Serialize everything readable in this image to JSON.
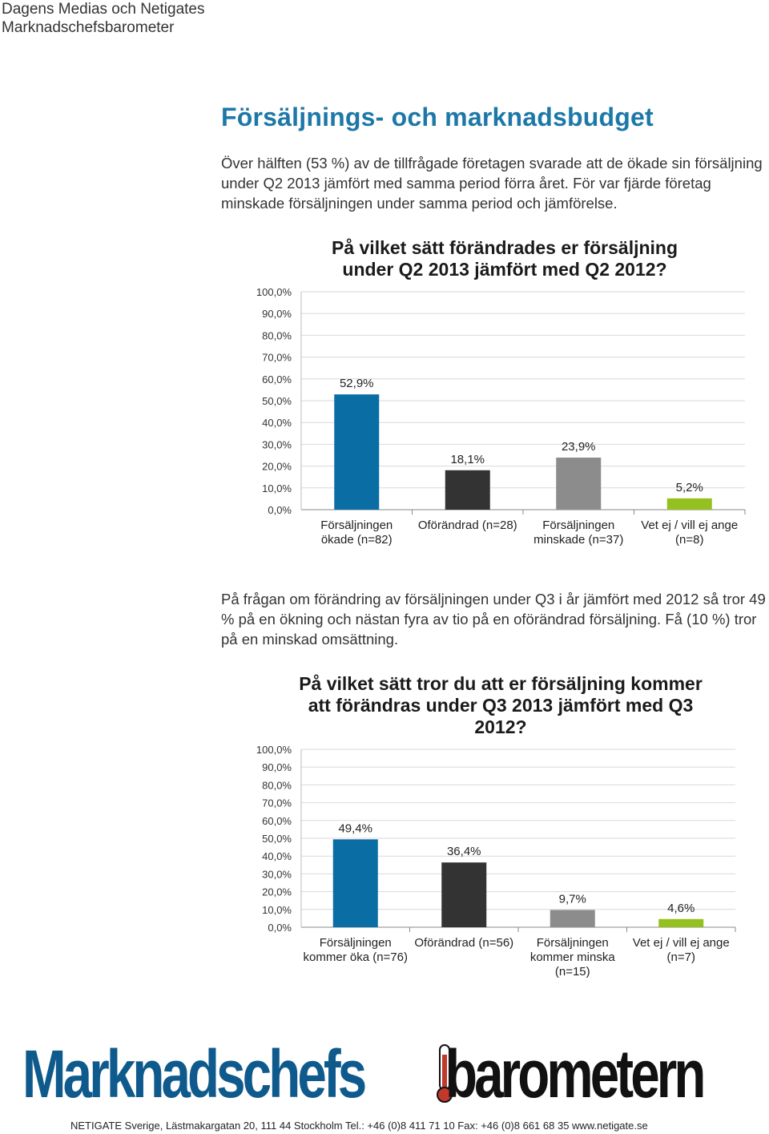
{
  "header": {
    "line1": "Dagens Medias och Netigates",
    "line2": "Marknadschefsbarometer"
  },
  "page_title": "Försäljnings- och marknadsbudget",
  "intro": "Över hälften (53 %) av de tillfrågade företagen svarade att de ökade sin försäljning under Q2 2013 jämfört med samma period förra året. För var fjärde företag minskade försäljningen under samma period och jämförelse.",
  "mid_text": "På frågan om förändring av försäljningen under Q3 i år jämfört med 2012 så tror 49 % på en ökning och nästan fyra av tio på en oförändrad försäljning. Få (10 %) tror på en minskad omsättning.",
  "chart_data": [
    {
      "type": "bar",
      "title": "På vilket sätt förändrades er försäljning under Q2 2013 jämfört med Q2 2012?",
      "categories": [
        [
          "Försäljningen",
          "ökade (n=82)"
        ],
        [
          "Oförändrad (n=28)"
        ],
        [
          "Försäljningen",
          "minskade (n=37)"
        ],
        [
          "Vet ej / vill ej ange",
          "(n=8)"
        ]
      ],
      "values": [
        52.9,
        18.1,
        23.9,
        5.2
      ],
      "value_labels": [
        "52,9%",
        "18,1%",
        "23,9%",
        "5,2%"
      ],
      "colors": [
        "#0a6ea5",
        "#333333",
        "#8c8c8c",
        "#94c11f"
      ],
      "yticks": [
        "0,0%",
        "10,0%",
        "20,0%",
        "30,0%",
        "40,0%",
        "50,0%",
        "60,0%",
        "70,0%",
        "80,0%",
        "90,0%",
        "100,0%"
      ],
      "ylim": [
        0,
        100
      ],
      "grid": true
    },
    {
      "type": "bar",
      "title": "På vilket sätt tror du att er försäljning kommer att förändras under Q3 2013 jämfört med Q3 2012?",
      "categories": [
        [
          "Försäljningen",
          "kommer öka (n=76)"
        ],
        [
          "Oförändrad (n=56)"
        ],
        [
          "Försäljningen",
          "kommer minska",
          "(n=15)"
        ],
        [
          "Vet ej / vill ej ange",
          "(n=7)"
        ]
      ],
      "values": [
        49.4,
        36.4,
        9.7,
        4.6
      ],
      "value_labels": [
        "49,4%",
        "36,4%",
        "9,7%",
        "4,6%"
      ],
      "colors": [
        "#0a6ea5",
        "#333333",
        "#8c8c8c",
        "#94c11f"
      ],
      "yticks": [
        "0,0%",
        "10,0%",
        "20,0%",
        "30,0%",
        "40,0%",
        "50,0%",
        "60,0%",
        "70,0%",
        "80,0%",
        "90,0%",
        "100,0%"
      ],
      "ylim": [
        0,
        100
      ],
      "grid": true
    }
  ],
  "logo": {
    "part1": "Marknadschefs",
    "part2": "barometern",
    "color1": "#0f5a8c",
    "color2": "#111111"
  },
  "footer": "NETIGATE Sverige, Lästmakargatan 20, 111 44 Stockholm   Tel.: +46 (0)8 411 71 10   Fax: +46 (0)8 661 68 35 www.netigate.se"
}
